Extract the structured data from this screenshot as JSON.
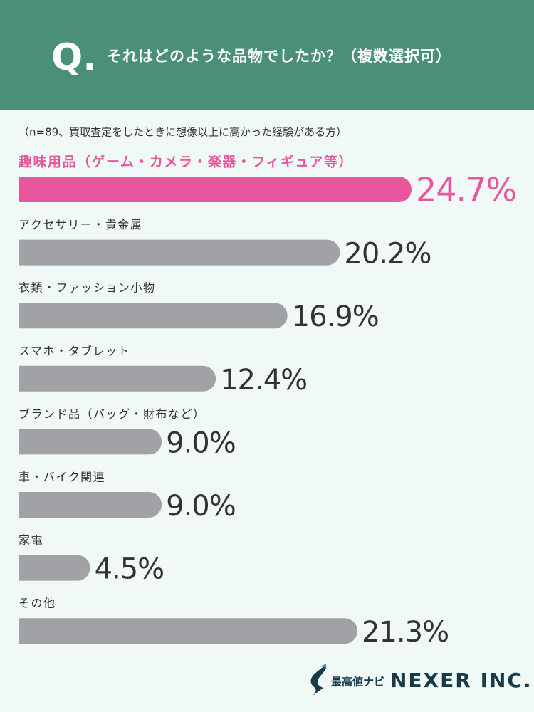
{
  "chart_data": {
    "type": "bar",
    "orientation": "horizontal",
    "question_mark": "Q.",
    "title": "それはどのような品物でしたか？（複数選択可）",
    "subtitle": "（n=89、買取査定をしたときに想像以上に高かった経験がある方）",
    "categories": [
      "趣味用品（ゲーム・カメラ・楽器・フィギュア等）",
      "アクセサリー・貴金属",
      "衣類・ファッション小物",
      "スマホ・タブレット",
      "ブランド品（バッグ・財布など）",
      "車・バイク関連",
      "家電",
      "その他"
    ],
    "values": [
      24.7,
      20.2,
      16.9,
      12.4,
      9.0,
      9.0,
      4.5,
      21.3
    ],
    "value_labels": [
      "24.7%",
      "20.2%",
      "16.9%",
      "12.4%",
      "9.0%",
      "9.0%",
      "4.5%",
      "21.3%"
    ],
    "colors": [
      "#e8579e",
      "#a1a2a6",
      "#a1a2a6",
      "#a1a2a6",
      "#a1a2a6",
      "#a1a2a6",
      "#a1a2a6",
      "#a1a2a6"
    ],
    "brand": "最高値ナビ",
    "company": "NEXER INC."
  }
}
